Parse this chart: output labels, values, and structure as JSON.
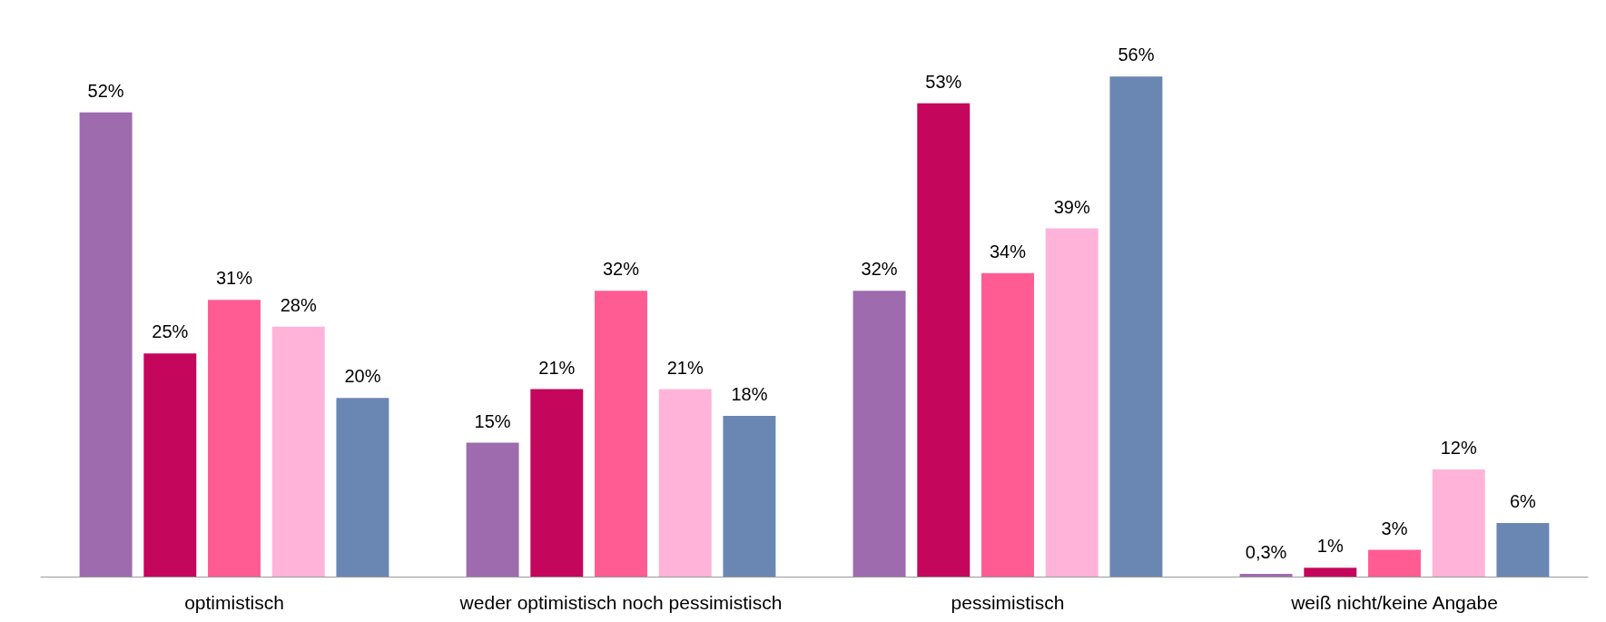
{
  "chart_data": {
    "type": "bar",
    "categories": [
      "optimistisch",
      "weder optimistisch noch pessimistisch",
      "pessimistisch",
      "weiß nicht/keine Angabe"
    ],
    "series": [
      {
        "color": "#9e6bae",
        "values": [
          52,
          15,
          32,
          0.3
        ],
        "value_labels": [
          "52%",
          "15%",
          "32%",
          "0,3%"
        ]
      },
      {
        "color": "#c4065c",
        "values": [
          25,
          21,
          53,
          1
        ],
        "value_labels": [
          "25%",
          "21%",
          "53%",
          "1%"
        ]
      },
      {
        "color": "#ff5c93",
        "values": [
          31,
          32,
          34,
          3
        ],
        "value_labels": [
          "31%",
          "32%",
          "34%",
          "3%"
        ]
      },
      {
        "color": "#ffb3d9",
        "values": [
          28,
          21,
          39,
          12
        ],
        "value_labels": [
          "28%",
          "21%",
          "39%",
          "12%"
        ]
      },
      {
        "color": "#6a87b4",
        "values": [
          20,
          18,
          56,
          6
        ],
        "value_labels": [
          "20%",
          "18%",
          "56%",
          "6%"
        ]
      }
    ]
  }
}
